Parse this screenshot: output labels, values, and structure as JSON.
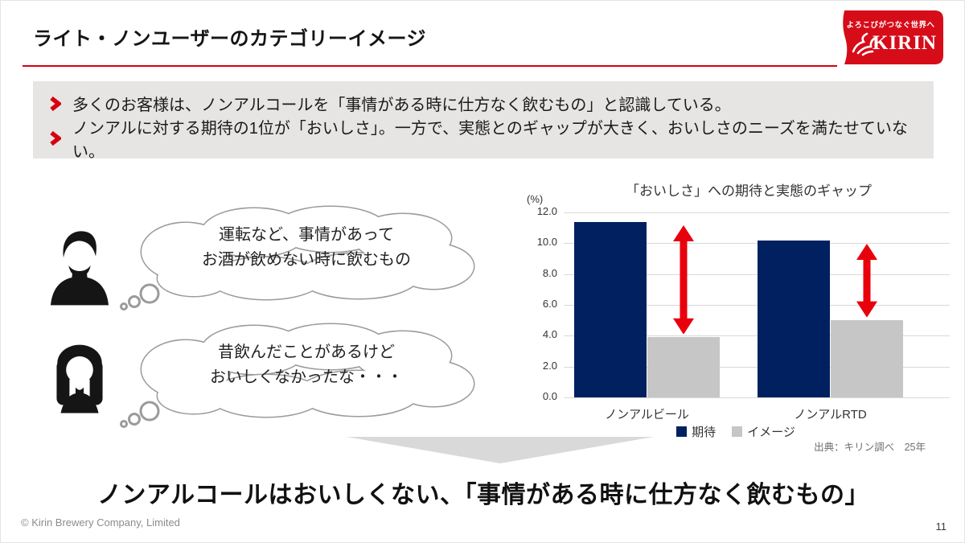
{
  "slide": {
    "title": "ライト・ノンユーザーのカテゴリーイメージ",
    "footer": "© Kirin  Brewery Company, Limited",
    "page_number": "11"
  },
  "logo": {
    "tagline": "よろこびがつなぐ世界へ",
    "brand": "KIRIN",
    "brand_color": "#d70c19"
  },
  "key_points": [
    "多くのお客様は、ノンアルコールを「事情がある時に仕方なく飲むもの」と認識している。",
    "ノンアルに対する期待の1位が「おいしさ」。一方で、実態とのギャップが大きく、おいしさのニーズを満たせていない。"
  ],
  "thoughts": [
    {
      "persona": "male",
      "lines": [
        "運転など、事情があって",
        "お酒が飲めない時に飲むもの"
      ]
    },
    {
      "persona": "female",
      "lines": [
        "昔飲んだことがあるけど",
        "おいしくなかったな・・・"
      ]
    }
  ],
  "chart_data": {
    "type": "bar",
    "title": "「おいしさ」への期待と実態のギャップ",
    "unit_label": "(%)",
    "categories": [
      "ノンアルビール",
      "ノンアルRTD"
    ],
    "series": [
      {
        "name": "期待",
        "color": "#002060",
        "values": [
          11.4,
          10.2
        ]
      },
      {
        "name": "イメージ",
        "color": "#c6c6c6",
        "values": [
          3.9,
          5.0
        ]
      }
    ],
    "ylim": [
      0,
      12
    ],
    "yticks": [
      "12.0",
      "10.0",
      "8.0",
      "6.0",
      "4.0",
      "2.0",
      "0.0"
    ],
    "grid": true,
    "legend_position": "bottom",
    "gap_arrow_color": "#e8000d",
    "source": "出典：キリン調べ　25年"
  },
  "conclusion": "ノンアルコールはおいしくない、「事情がある時に仕方なく飲むもの」"
}
